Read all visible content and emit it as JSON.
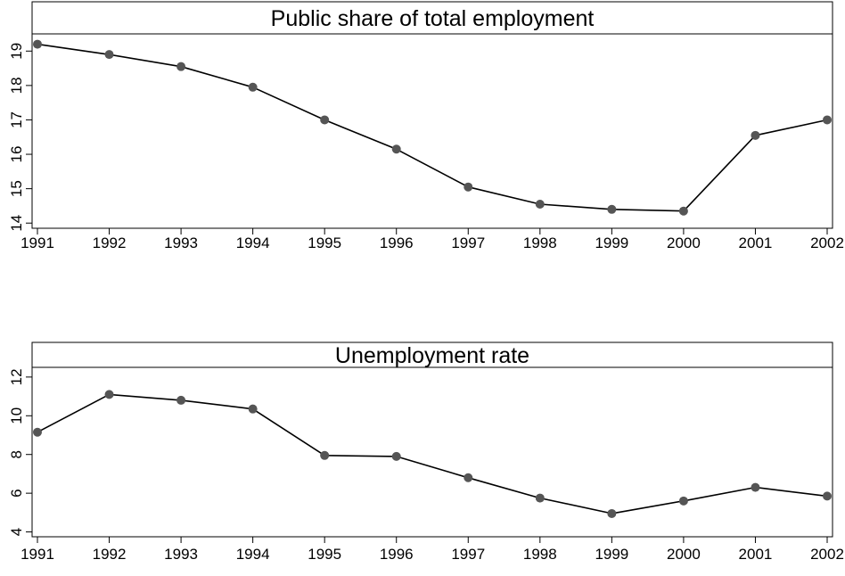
{
  "chart_data": [
    {
      "type": "line",
      "title": "Public share of total employment",
      "x": [
        1991,
        1992,
        1993,
        1994,
        1995,
        1996,
        1997,
        1998,
        1999,
        2000,
        2001,
        2002
      ],
      "series": [
        {
          "values": [
            19.2,
            18.9,
            18.55,
            17.95,
            17.0,
            16.15,
            15.05,
            14.55,
            14.4,
            14.35,
            16.55,
            17.0
          ]
        }
      ],
      "yticks": [
        14,
        15,
        16,
        17,
        18,
        19
      ],
      "ylim": [
        13.85,
        19.5
      ],
      "xlabel": "",
      "ylabel": "",
      "grid": false,
      "line_color": "#000000",
      "marker_color": "#555555"
    },
    {
      "type": "line",
      "title": "Unemployment rate",
      "x": [
        1991,
        1992,
        1993,
        1994,
        1995,
        1996,
        1997,
        1998,
        1999,
        2000,
        2001,
        2002
      ],
      "series": [
        {
          "values": [
            9.15,
            11.1,
            10.8,
            10.35,
            7.95,
            7.9,
            6.8,
            5.75,
            4.95,
            5.6,
            6.3,
            5.85
          ]
        }
      ],
      "yticks": [
        4,
        6,
        8,
        10,
        12
      ],
      "ylim": [
        3.75,
        12.5
      ],
      "xlabel": "",
      "ylabel": "",
      "grid": false,
      "line_color": "#000000",
      "marker_color": "#555555"
    }
  ]
}
